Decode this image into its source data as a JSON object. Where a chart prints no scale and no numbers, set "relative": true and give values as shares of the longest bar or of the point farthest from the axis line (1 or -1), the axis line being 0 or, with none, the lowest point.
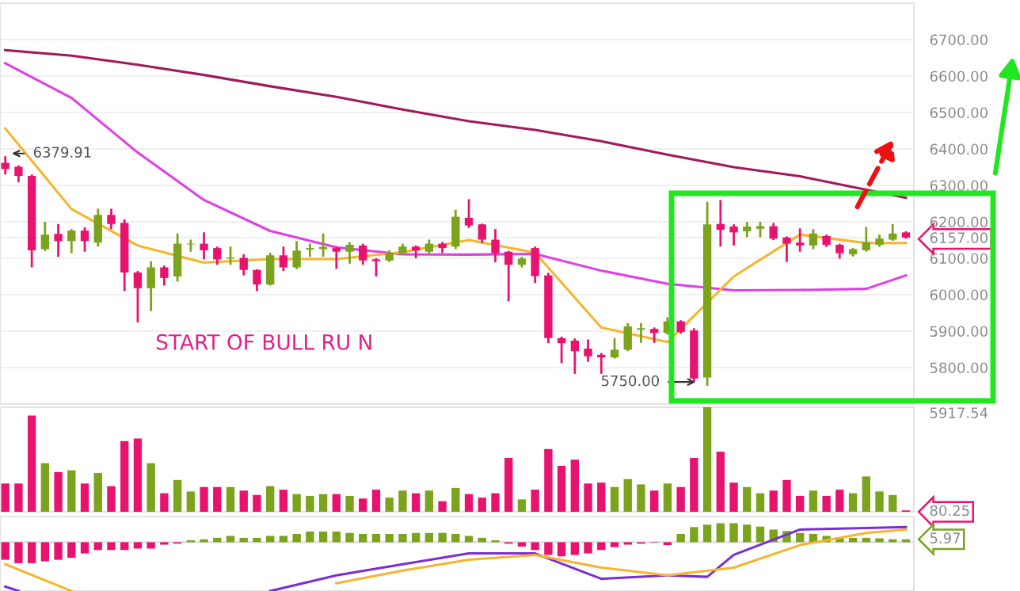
{
  "chart_data": [
    {
      "type": "candlestick",
      "categories": [
        null,
        null,
        null,
        null,
        null,
        null,
        null,
        null,
        null,
        null,
        null,
        null,
        null,
        null,
        null,
        null,
        null,
        null,
        null,
        null,
        null,
        null,
        null,
        null,
        null,
        null,
        null,
        null,
        null,
        null,
        null,
        null,
        null,
        null,
        null,
        null,
        null,
        null,
        null,
        null,
        null,
        null,
        null,
        null,
        null,
        null,
        null,
        null,
        null,
        null,
        null,
        null,
        null,
        null,
        null,
        null,
        null,
        null,
        null,
        null,
        null,
        null,
        null,
        null,
        null,
        null,
        null,
        null,
        null
      ],
      "colors": [
        "#e8136f",
        "#e8136f",
        "#e8136f",
        "#7ba31c",
        "#e8136f",
        "#7ba31c",
        "#e8136f",
        "#7ba31c",
        "#e8136f",
        "#e8136f",
        "#e8136f",
        "#7ba31c",
        "#e8136f",
        "#7ba31c",
        "#7ba31c",
        "#e8136f",
        "#e8136f",
        "#7ba31c",
        "#e8136f",
        "#e8136f",
        "#7ba31c",
        "#e8136f",
        "#7ba31c",
        "#7ba31c",
        "#7ba31c",
        "#e8136f",
        "#7ba31c",
        "#e8136f",
        "#e8136f",
        "#7ba31c",
        "#7ba31c",
        "#e8136f",
        "#7ba31c",
        "#e8136f",
        "#7ba31c",
        "#e8136f",
        "#e8136f",
        "#e8136f",
        "#e8136f",
        "#7ba31c",
        "#e8136f",
        "#e8136f",
        "#e8136f",
        "#e8136f",
        "#e8136f",
        "#e8136f",
        "#7ba31c",
        "#7ba31c",
        "#7ba31c",
        "#e8136f",
        "#7ba31c",
        "#e8136f",
        "#e8136f",
        "#7ba31c",
        "#e8136f",
        "#e8136f",
        "#7ba31c",
        "#7ba31c",
        "#e8136f",
        "#e8136f",
        "#e8136f",
        "#7ba31c",
        "#e8136f",
        "#e8136f",
        "#7ba31c",
        "#7ba31c",
        "#7ba31c",
        "#7ba31c",
        "#e8136f"
      ],
      "ohlc": [
        [
          6362,
          6379.91,
          6330,
          6345
        ],
        [
          6351,
          6355,
          6309,
          6326
        ],
        [
          6326,
          6330,
          6075,
          6122
        ],
        [
          6125,
          6200,
          6120,
          6165
        ],
        [
          6167,
          6194,
          6104,
          6147
        ],
        [
          6147,
          6180,
          6114,
          6176
        ],
        [
          6176,
          6185,
          6118,
          6147
        ],
        [
          6143,
          6236,
          6132,
          6219
        ],
        [
          6219,
          6236,
          6180,
          6194
        ],
        [
          6197,
          6207,
          6010,
          6061
        ],
        [
          6061,
          6065,
          5924,
          6018
        ],
        [
          6018,
          6092,
          5955,
          6075
        ],
        [
          6075,
          6080,
          6025,
          6046
        ],
        [
          6050,
          6168,
          6036,
          6140
        ],
        [
          6138,
          6151,
          6118,
          6140
        ],
        [
          6140,
          6171,
          6097,
          6122
        ],
        [
          6128,
          6132,
          6082,
          6097
        ],
        [
          6099,
          6132,
          6082,
          6102
        ],
        [
          6101,
          6111,
          6053,
          6068
        ],
        [
          6068,
          6070,
          6010,
          6028
        ],
        [
          6028,
          6115,
          6025,
          6108
        ],
        [
          6108,
          6132,
          6065,
          6075
        ],
        [
          6075,
          6147,
          6070,
          6121
        ],
        [
          6124,
          6140,
          6104,
          6128
        ],
        [
          6125,
          6168,
          6104,
          6131
        ],
        [
          6128,
          6131,
          6071,
          6118
        ],
        [
          6118,
          6144,
          6085,
          6137
        ],
        [
          6135,
          6140,
          6082,
          6094
        ],
        [
          6097,
          6100,
          6050,
          6092
        ],
        [
          6094,
          6122,
          6090,
          6115
        ],
        [
          6114,
          6140,
          6110,
          6132
        ],
        [
          6132,
          6135,
          6100,
          6121
        ],
        [
          6118,
          6151,
          6111,
          6140
        ],
        [
          6140,
          6145,
          6114,
          6128
        ],
        [
          6132,
          6233,
          6125,
          6214
        ],
        [
          6211,
          6262,
          6183,
          6190
        ],
        [
          6193,
          6195,
          6142,
          6151
        ],
        [
          6151,
          6180,
          6089,
          6114
        ],
        [
          6118,
          6120,
          5982,
          6082
        ],
        [
          6082,
          6104,
          6075,
          6099
        ],
        [
          6128,
          6132,
          6032,
          6051
        ],
        [
          6053,
          6060,
          5867,
          5881
        ],
        [
          5881,
          5885,
          5812,
          5867
        ],
        [
          5874,
          5880,
          5783,
          5845
        ],
        [
          5852,
          5877,
          5816,
          5831
        ],
        [
          5835,
          5840,
          5783,
          5828
        ],
        [
          5828,
          5881,
          5825,
          5849
        ],
        [
          5849,
          5922,
          5845,
          5913
        ],
        [
          5904,
          5922,
          5868,
          5908
        ],
        [
          5906,
          5910,
          5868,
          5895
        ],
        [
          5895,
          5938,
          5890,
          5927
        ],
        [
          5927,
          5930,
          5893,
          5898
        ],
        [
          5902,
          5908,
          5760,
          5770
        ],
        [
          5773,
          6255,
          5750,
          6193
        ],
        [
          6194,
          6260,
          6132,
          6178
        ],
        [
          6187,
          6193,
          6135,
          6171
        ],
        [
          6174,
          6200,
          6158,
          6187
        ],
        [
          6181,
          6200,
          6158,
          6188
        ],
        [
          6188,
          6197,
          6150,
          6154
        ],
        [
          6157,
          6160,
          6090,
          6140
        ],
        [
          6143,
          6182,
          6118,
          6135
        ],
        [
          6135,
          6180,
          6125,
          6168
        ],
        [
          6161,
          6165,
          6131,
          6137
        ],
        [
          6137,
          6140,
          6099,
          6114
        ],
        [
          6111,
          6128,
          6105,
          6125
        ],
        [
          6122,
          6186,
          6118,
          6144
        ],
        [
          6137,
          6165,
          6131,
          6154
        ],
        [
          6151,
          6194,
          6148,
          6168
        ],
        [
          6171,
          6174,
          6154,
          6157
        ]
      ],
      "series": [
        {
          "type": "line",
          "color": "#a3195b",
          "values": [
            6671,
            null,
            null,
            null,
            null,
            6656,
            null,
            null,
            null,
            null,
            6631,
            null,
            null,
            null,
            null,
            6603,
            null,
            null,
            null,
            null,
            6572,
            null,
            null,
            null,
            null,
            6543,
            null,
            null,
            null,
            null,
            6508,
            null,
            null,
            null,
            null,
            6476,
            null,
            null,
            null,
            null,
            6452,
            null,
            null,
            null,
            null,
            6421,
            null,
            null,
            null,
            null,
            6384,
            null,
            null,
            null,
            null,
            6350,
            null,
            null,
            null,
            null,
            6325,
            null,
            null,
            null,
            null,
            6288,
            null,
            null,
            6266
          ]
        },
        {
          "type": "line",
          "color": "#e03ee6",
          "values": [
            6635,
            null,
            null,
            null,
            null,
            6540,
            null,
            null,
            null,
            null,
            6390,
            null,
            null,
            null,
            null,
            6260,
            null,
            null,
            null,
            null,
            6175,
            null,
            null,
            null,
            null,
            6130,
            null,
            null,
            null,
            null,
            6111,
            null,
            null,
            null,
            null,
            6110,
            null,
            null,
            null,
            null,
            6112,
            null,
            null,
            null,
            null,
            6066,
            null,
            null,
            null,
            null,
            6030,
            null,
            null,
            null,
            null,
            6012,
            null,
            null,
            null,
            null,
            6013,
            null,
            null,
            null,
            null,
            6016,
            null,
            null,
            6053
          ]
        },
        {
          "type": "line",
          "color": "#f5b52e",
          "values": [
            6456,
            null,
            null,
            null,
            null,
            6235,
            null,
            null,
            null,
            null,
            6135,
            null,
            null,
            null,
            null,
            6088,
            null,
            null,
            null,
            null,
            6098,
            null,
            null,
            null,
            null,
            6098,
            null,
            null,
            null,
            null,
            6117,
            null,
            null,
            null,
            null,
            6150,
            null,
            null,
            null,
            null,
            6115,
            null,
            null,
            null,
            null,
            5910,
            null,
            null,
            null,
            null,
            5870,
            null,
            null,
            null,
            null,
            6050,
            null,
            null,
            null,
            null,
            6165,
            null,
            null,
            null,
            null,
            6142,
            null,
            null,
            6142
          ]
        }
      ],
      "ylim": [
        5700,
        6800
      ],
      "yticks": [
        {
          "value": 5800,
          "label": "5800.00"
        },
        {
          "value": 5900,
          "label": "5900.00"
        },
        {
          "value": 6000,
          "label": "6000.00"
        },
        {
          "value": 6100,
          "label": "6100.00"
        },
        {
          "value": 6157,
          "label": "6157.00"
        },
        {
          "value": 6200,
          "label": "6200.00"
        },
        {
          "value": 6300,
          "label": "6300.00"
        },
        {
          "value": 6400,
          "label": "6400.00"
        },
        {
          "value": 6500,
          "label": "6500.00"
        },
        {
          "value": 6600,
          "label": "6600.00"
        },
        {
          "value": 6700,
          "label": "6700.00"
        }
      ],
      "grid": "y",
      "tick_labels": "y",
      "annotations": [
        "6379.91",
        "5750.00",
        "START OF BULL RU N"
      ]
    },
    {
      "type": "bar",
      "categories": [
        null,
        null,
        null,
        null,
        null,
        null,
        null,
        null,
        null,
        null,
        null,
        null,
        null,
        null,
        null,
        null,
        null,
        null,
        null,
        null,
        null,
        null,
        null,
        null,
        null,
        null,
        null,
        null,
        null,
        null,
        null,
        null,
        null,
        null,
        null,
        null,
        null,
        null,
        null,
        null,
        null,
        null,
        null,
        null,
        null,
        null,
        null,
        null,
        null,
        null,
        null,
        null,
        null,
        null,
        null,
        null,
        null,
        null,
        null,
        null,
        null,
        null,
        null,
        null,
        null,
        null,
        null,
        null,
        null
      ],
      "colors": [
        "#e8136f",
        "#e8136f",
        "#e8136f",
        "#7ba31c",
        "#e8136f",
        "#7ba31c",
        "#e8136f",
        "#7ba31c",
        "#e8136f",
        "#e8136f",
        "#e8136f",
        "#7ba31c",
        "#e8136f",
        "#7ba31c",
        "#7ba31c",
        "#e8136f",
        "#e8136f",
        "#7ba31c",
        "#e8136f",
        "#e8136f",
        "#7ba31c",
        "#e8136f",
        "#7ba31c",
        "#7ba31c",
        "#7ba31c",
        "#e8136f",
        "#7ba31c",
        "#e8136f",
        "#e8136f",
        "#7ba31c",
        "#7ba31c",
        "#e8136f",
        "#7ba31c",
        "#e8136f",
        "#7ba31c",
        "#e8136f",
        "#e8136f",
        "#e8136f",
        "#e8136f",
        "#7ba31c",
        "#e8136f",
        "#e8136f",
        "#e8136f",
        "#e8136f",
        "#e8136f",
        "#e8136f",
        "#7ba31c",
        "#7ba31c",
        "#7ba31c",
        "#e8136f",
        "#7ba31c",
        "#e8136f",
        "#e8136f",
        "#7ba31c",
        "#e8136f",
        "#e8136f",
        "#7ba31c",
        "#7ba31c",
        "#e8136f",
        "#e8136f",
        "#e8136f",
        "#7ba31c",
        "#e8136f",
        "#e8136f",
        "#7ba31c",
        "#7ba31c",
        "#7ba31c",
        "#7ba31c",
        "#e8136f"
      ],
      "values": [
        1600,
        1600,
        5450,
        2750,
        2250,
        2350,
        1600,
        2200,
        1450,
        4000,
        4150,
        2750,
        1050,
        1800,
        1150,
        1400,
        1400,
        1400,
        1200,
        950,
        1450,
        1250,
        1000,
        900,
        1000,
        1000,
        900,
        750,
        1250,
        800,
        1200,
        1050,
        1200,
        600,
        1350,
        1000,
        800,
        1050,
        3050,
        700,
        1250,
        3550,
        2600,
        2950,
        1600,
        1650,
        1400,
        1850,
        1550,
        1200,
        1600,
        1400,
        3050,
        5917.54,
        3400,
        1650,
        1400,
        1050,
        1200,
        1800,
        900,
        1200,
        900,
        1250,
        1050,
        2000,
        1150,
        950,
        80.25
      ],
      "ylim": [
        0,
        5917.54
      ],
      "yticks": [
        80.25,
        5917.54
      ],
      "tick_labels": "y"
    },
    {
      "type": "bar",
      "relative": true,
      "categories": [
        null,
        null,
        null,
        null,
        null,
        null,
        null,
        null,
        null,
        null,
        null,
        null,
        null,
        null,
        null,
        null,
        null,
        null,
        null,
        null,
        null,
        null,
        null,
        null,
        null,
        null,
        null,
        null,
        null,
        null,
        null,
        null,
        null,
        null,
        null,
        null,
        null,
        null,
        null,
        null,
        null,
        null,
        null,
        null,
        null,
        null,
        null,
        null,
        null,
        null,
        null,
        null,
        null,
        null,
        null,
        null,
        null,
        null,
        null,
        null,
        null,
        null,
        null,
        null,
        null,
        null,
        null,
        null,
        null
      ],
      "colors": [
        "#e8136f",
        "#e8136f",
        "#e8136f",
        "#e8136f",
        "#e8136f",
        "#e8136f",
        "#e8136f",
        "#e8136f",
        "#e8136f",
        "#e8136f",
        "#e8136f",
        "#e8136f",
        "#e8136f",
        "#e8136f",
        "#7ba31c",
        "#7ba31c",
        "#7ba31c",
        "#7ba31c",
        "#7ba31c",
        "#7ba31c",
        "#7ba31c",
        "#7ba31c",
        "#7ba31c",
        "#7ba31c",
        "#7ba31c",
        "#7ba31c",
        "#7ba31c",
        "#7ba31c",
        "#7ba31c",
        "#7ba31c",
        "#7ba31c",
        "#7ba31c",
        "#7ba31c",
        "#7ba31c",
        "#7ba31c",
        "#7ba31c",
        "#7ba31c",
        "#7ba31c",
        "#e8136f",
        "#e8136f",
        "#e8136f",
        "#e8136f",
        "#e8136f",
        "#e8136f",
        "#e8136f",
        "#e8136f",
        "#e8136f",
        "#e8136f",
        "#e8136f",
        "#e8136f",
        "#e8136f",
        "#7ba31c",
        "#7ba31c",
        "#7ba31c",
        "#7ba31c",
        "#7ba31c",
        "#7ba31c",
        "#7ba31c",
        "#7ba31c",
        "#7ba31c",
        "#7ba31c",
        "#7ba31c",
        "#7ba31c",
        "#7ba31c",
        "#7ba31c",
        "#7ba31c",
        "#7ba31c",
        "#7ba31c",
        "#7ba31c"
      ],
      "values": [
        -0.36,
        -0.43,
        -0.43,
        -0.39,
        -0.36,
        -0.32,
        -0.23,
        -0.16,
        -0.16,
        -0.16,
        -0.13,
        -0.13,
        -0.05,
        -0.03,
        0.04,
        0.06,
        0.09,
        0.13,
        0.09,
        0.09,
        0.13,
        0.13,
        0.17,
        0.22,
        0.22,
        0.22,
        0.19,
        0.17,
        0.17,
        0.17,
        0.17,
        0.19,
        0.19,
        0.19,
        0.17,
        0.13,
        0.09,
        0.04,
        -0.03,
        -0.09,
        -0.16,
        -0.26,
        -0.29,
        -0.26,
        -0.23,
        -0.16,
        -0.1,
        -0.05,
        -0.03,
        -0.01,
        -0.06,
        0.17,
        0.31,
        0.36,
        0.39,
        0.39,
        0.36,
        0.32,
        0.26,
        0.23,
        0.19,
        0.17,
        0.13,
        0.1,
        0.09,
        0.09,
        0.08,
        0.06,
        0.06
      ],
      "series": [
        {
          "type": "line",
          "color": "#7a2fd4",
          "values": [
            -0.91,
            -1.0,
            null,
            null,
            null,
            null,
            null,
            null,
            null,
            null,
            null,
            null,
            null,
            null,
            null,
            null,
            null,
            null,
            null,
            null,
            null,
            null,
            null,
            null,
            null,
            null,
            null,
            null,
            null,
            null,
            null,
            null,
            null,
            null,
            null,
            null,
            null,
            null,
            null,
            null,
            null,
            null,
            null,
            null,
            null,
            null,
            null,
            null,
            null,
            null,
            null,
            null,
            null,
            null,
            null,
            null,
            null,
            null,
            null,
            null,
            null,
            null,
            null,
            null,
            null,
            null,
            null,
            null,
            null
          ]
        },
        {
          "type": "line",
          "color": "#7a2fd4",
          "values": [
            null,
            null,
            null,
            null,
            null,
            null,
            null,
            null,
            null,
            null,
            null,
            null,
            null,
            null,
            null,
            null,
            null,
            null,
            null,
            null,
            -1.0,
            null,
            null,
            null,
            null,
            -0.68,
            null,
            null,
            null,
            null,
            -0.45,
            null,
            null,
            null,
            null,
            -0.23,
            null,
            null,
            null,
            null,
            -0.23,
            null,
            null,
            null,
            null,
            -0.75,
            null,
            null,
            null,
            null,
            -0.68,
            null,
            null,
            -0.71,
            null,
            -0.26,
            null,
            null,
            null,
            null,
            0.26,
            null,
            null,
            null,
            null,
            0.29,
            null,
            null,
            0.31
          ]
        },
        {
          "type": "line",
          "color": "#f5b52e",
          "values": [
            -0.45,
            null,
            null,
            null,
            null,
            -1.0,
            null,
            null,
            null,
            null,
            null,
            null,
            null,
            null,
            null,
            null,
            null,
            null,
            null,
            null,
            null,
            null,
            null,
            null,
            null,
            null,
            null,
            null,
            null,
            null,
            null,
            null,
            null,
            null,
            null,
            null,
            null,
            null,
            null,
            null,
            null,
            null,
            null,
            null,
            null,
            null,
            null,
            null,
            null,
            null,
            null,
            null,
            null,
            null,
            null,
            null,
            null,
            null,
            null,
            null,
            null,
            null,
            null,
            null,
            null,
            null,
            null,
            null,
            null
          ]
        },
        {
          "type": "line",
          "color": "#f5b52e",
          "values": [
            null,
            null,
            null,
            null,
            null,
            null,
            null,
            null,
            null,
            null,
            null,
            null,
            null,
            null,
            null,
            null,
            null,
            null,
            null,
            null,
            null,
            null,
            null,
            null,
            null,
            -0.84,
            null,
            null,
            null,
            null,
            -0.58,
            null,
            null,
            null,
            null,
            -0.36,
            null,
            null,
            null,
            null,
            -0.26,
            null,
            null,
            null,
            null,
            -0.52,
            null,
            null,
            null,
            null,
            -0.68,
            null,
            null,
            null,
            null,
            -0.52,
            null,
            null,
            null,
            null,
            -0.06,
            null,
            null,
            null,
            null,
            0.19,
            null,
            null,
            0.26
          ]
        }
      ],
      "annotations": [
        "5.97"
      ]
    }
  ]
}
